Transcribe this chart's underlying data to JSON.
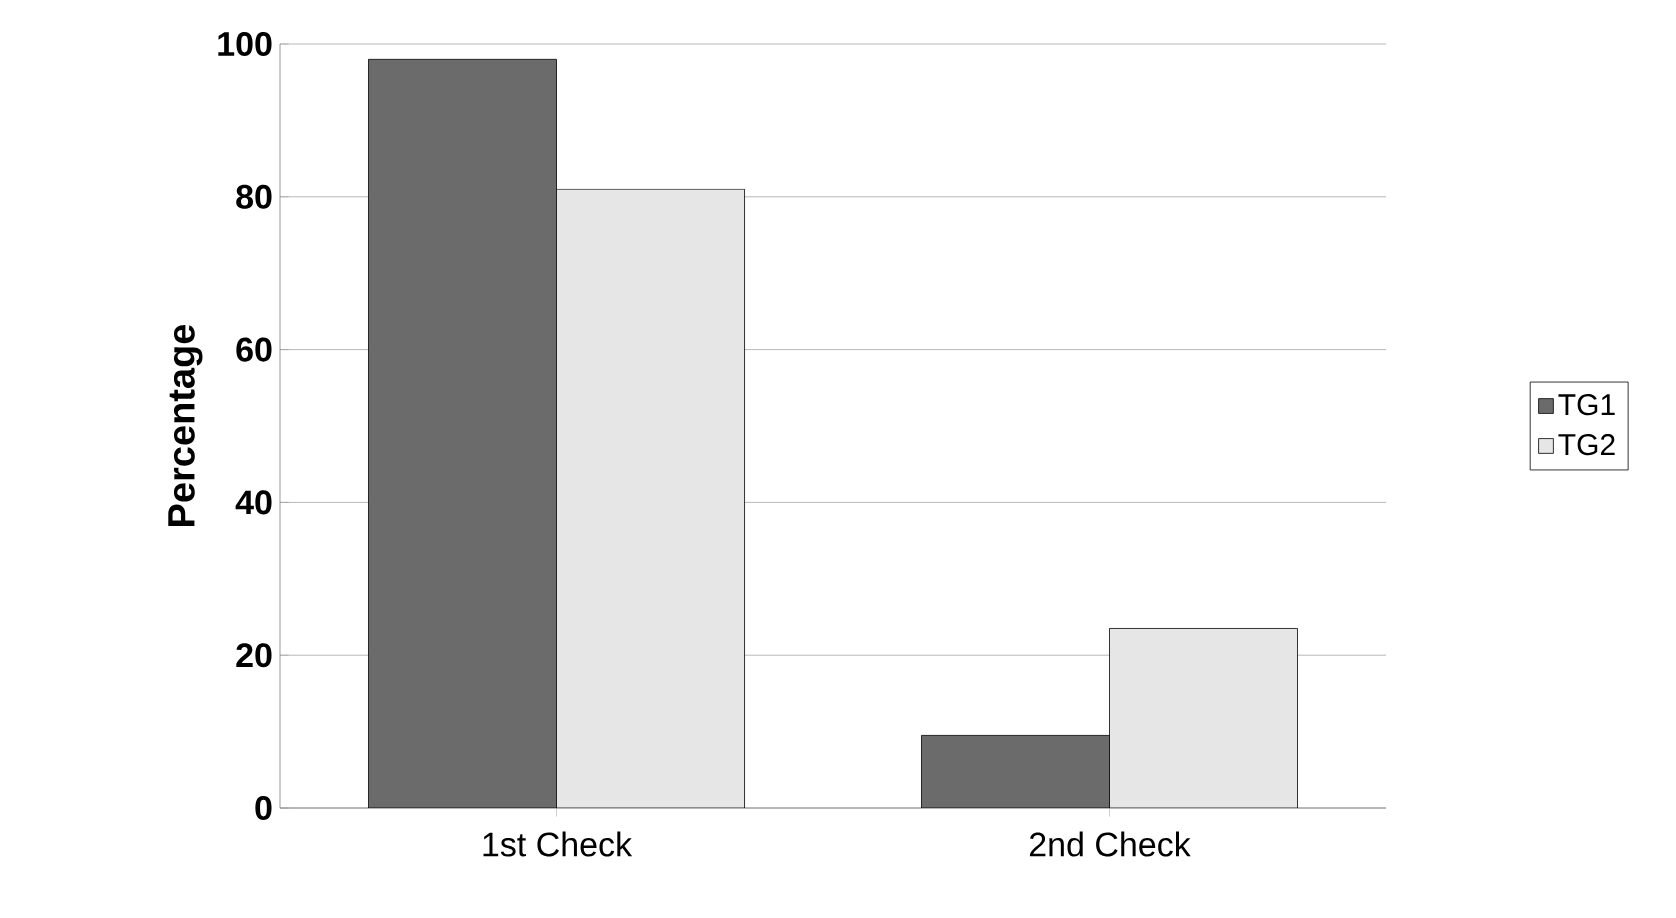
{
  "chart_data": {
    "type": "bar",
    "ylabel": "Percentage",
    "categories": [
      "1st Check",
      "2nd Check"
    ],
    "series": [
      {
        "name": "TG1",
        "color": "#6b6b6b",
        "values": [
          98,
          9.5
        ]
      },
      {
        "name": "TG2",
        "color": "#e6e6e6",
        "values": [
          81,
          23.5
        ]
      }
    ],
    "ylim": [
      0,
      100
    ],
    "yticks": [
      0,
      20,
      40,
      60,
      80,
      100
    ],
    "grid": "y",
    "legend": "right"
  }
}
